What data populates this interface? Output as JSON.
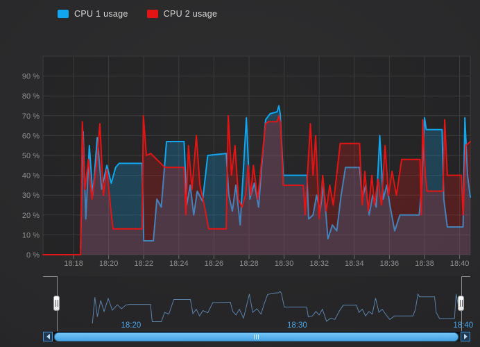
{
  "legend": {
    "items": [
      {
        "label": "CPU 1 usage",
        "color": "#10a6f0"
      },
      {
        "label": "CPU 2 usage",
        "color": "#e51414"
      }
    ]
  },
  "colors": {
    "background": "#28282a",
    "plot_background": "rgba(0,0,0,0.13)",
    "grid": "#3c3c3c",
    "plot_border": "#3c3c3c",
    "axis_label": "#8f8f8f",
    "tick_mark": "#6e6e6e",
    "navigator_line": "#5b82ab",
    "navigator_label": "#4aa5e8",
    "navigator_outline": "#8c8c8c",
    "scrollbar_thumb": "#55aeeb"
  },
  "chart_data": {
    "type": "line",
    "title": "",
    "xlabel": "",
    "ylabel": "",
    "grid": true,
    "legend_position": "top",
    "x_axis": {
      "unit": "time (HH:MM)",
      "range_minutes": [
        16.26,
        40.61
      ],
      "ticks": [
        {
          "t": 18,
          "label": "18:18"
        },
        {
          "t": 20,
          "label": "18:20"
        },
        {
          "t": 22,
          "label": "18:22"
        },
        {
          "t": 24,
          "label": "18:24"
        },
        {
          "t": 26,
          "label": "18:26"
        },
        {
          "t": 28,
          "label": "18:28"
        },
        {
          "t": 30,
          "label": "18:30"
        },
        {
          "t": 32,
          "label": "18:32"
        },
        {
          "t": 34,
          "label": "18:34"
        },
        {
          "t": 36,
          "label": "18:36"
        },
        {
          "t": 38,
          "label": "18:38"
        },
        {
          "t": 40,
          "label": "18:40"
        }
      ]
    },
    "y_axis": {
      "unit": "%",
      "range": [
        0,
        100
      ],
      "ticks": [
        {
          "v": 0,
          "label": "0 %"
        },
        {
          "v": 10,
          "label": "10 %"
        },
        {
          "v": 20,
          "label": "20 %"
        },
        {
          "v": 30,
          "label": "30 %"
        },
        {
          "v": 40,
          "label": "40 %"
        },
        {
          "v": 50,
          "label": "50 %"
        },
        {
          "v": 60,
          "label": "60 %"
        },
        {
          "v": 70,
          "label": "70 %"
        },
        {
          "v": 80,
          "label": "80 %"
        },
        {
          "v": 90,
          "label": "90 %"
        }
      ]
    },
    "series": [
      {
        "name": "CPU 1 usage",
        "color": "#10a6f0",
        "fill_opacity": 0.24,
        "points": [
          [
            18.4,
            3
          ],
          [
            18.55,
            62
          ],
          [
            18.7,
            18
          ],
          [
            18.9,
            55
          ],
          [
            19.1,
            30
          ],
          [
            19.35,
            59
          ],
          [
            19.6,
            33
          ],
          [
            19.9,
            45
          ],
          [
            20.15,
            36
          ],
          [
            20.4,
            44
          ],
          [
            20.6,
            46
          ],
          [
            21.9,
            46
          ],
          [
            22.0,
            7
          ],
          [
            22.55,
            7
          ],
          [
            22.75,
            28
          ],
          [
            23.0,
            24
          ],
          [
            23.3,
            57
          ],
          [
            24.3,
            57
          ],
          [
            24.45,
            25
          ],
          [
            24.65,
            35
          ],
          [
            24.85,
            20
          ],
          [
            25.05,
            32
          ],
          [
            25.35,
            27
          ],
          [
            25.65,
            50
          ],
          [
            26.7,
            51
          ],
          [
            26.85,
            30
          ],
          [
            27.05,
            22
          ],
          [
            27.25,
            35
          ],
          [
            27.5,
            15
          ],
          [
            27.85,
            69
          ],
          [
            28.05,
            28
          ],
          [
            28.3,
            36
          ],
          [
            28.55,
            24
          ],
          [
            28.75,
            48
          ],
          [
            28.95,
            68
          ],
          [
            29.2,
            71
          ],
          [
            29.6,
            72
          ],
          [
            29.7,
            75
          ],
          [
            29.78,
            71
          ],
          [
            29.95,
            40
          ],
          [
            31.3,
            40
          ],
          [
            31.4,
            18
          ],
          [
            31.65,
            20
          ],
          [
            31.85,
            30
          ],
          [
            32.05,
            22
          ],
          [
            32.25,
            35
          ],
          [
            32.5,
            8
          ],
          [
            32.75,
            15
          ],
          [
            33.0,
            12
          ],
          [
            33.25,
            30
          ],
          [
            33.5,
            44
          ],
          [
            34.3,
            44
          ],
          [
            34.45,
            28
          ],
          [
            34.65,
            35
          ],
          [
            34.85,
            20
          ],
          [
            35.05,
            30
          ],
          [
            35.25,
            24
          ],
          [
            35.45,
            60
          ],
          [
            35.65,
            28
          ],
          [
            35.85,
            35
          ],
          [
            36.05,
            24
          ],
          [
            36.3,
            12
          ],
          [
            36.6,
            20
          ],
          [
            37.7,
            20
          ],
          [
            37.85,
            35
          ],
          [
            38.0,
            69
          ],
          [
            38.1,
            63
          ],
          [
            39.0,
            63
          ],
          [
            39.1,
            28
          ],
          [
            39.3,
            14
          ],
          [
            40.2,
            14
          ],
          [
            40.3,
            69
          ],
          [
            40.45,
            40
          ],
          [
            40.61,
            29
          ]
        ]
      },
      {
        "name": "CPU 2 usage",
        "color": "#e51414",
        "fill_opacity": 0.24,
        "points": [
          [
            16.26,
            0
          ],
          [
            18.4,
            0
          ],
          [
            18.5,
            67
          ],
          [
            18.65,
            33
          ],
          [
            18.85,
            48
          ],
          [
            19.05,
            28
          ],
          [
            19.3,
            45
          ],
          [
            19.5,
            66
          ],
          [
            19.7,
            30
          ],
          [
            19.9,
            43
          ],
          [
            20.1,
            25
          ],
          [
            20.25,
            13
          ],
          [
            21.9,
            13
          ],
          [
            21.98,
            70
          ],
          [
            22.15,
            50
          ],
          [
            22.4,
            51
          ],
          [
            23.2,
            44
          ],
          [
            24.3,
            44
          ],
          [
            24.4,
            20
          ],
          [
            24.55,
            55
          ],
          [
            24.75,
            33
          ],
          [
            25.0,
            60
          ],
          [
            25.2,
            35
          ],
          [
            25.45,
            25
          ],
          [
            25.7,
            13
          ],
          [
            26.7,
            13
          ],
          [
            26.82,
            70
          ],
          [
            27.0,
            40
          ],
          [
            27.2,
            55
          ],
          [
            27.4,
            28
          ],
          [
            27.6,
            24
          ],
          [
            27.8,
            30
          ],
          [
            27.95,
            45
          ],
          [
            28.1,
            30
          ],
          [
            28.25,
            45
          ],
          [
            28.5,
            28
          ],
          [
            28.75,
            50
          ],
          [
            28.95,
            66
          ],
          [
            29.1,
            67
          ],
          [
            29.6,
            67
          ],
          [
            29.7,
            70
          ],
          [
            29.8,
            66
          ],
          [
            29.95,
            35
          ],
          [
            30.1,
            35
          ],
          [
            31.1,
            35
          ],
          [
            31.2,
            20
          ],
          [
            31.5,
            66
          ],
          [
            31.65,
            40
          ],
          [
            31.8,
            60
          ],
          [
            32.0,
            18
          ],
          [
            32.2,
            40
          ],
          [
            32.4,
            22
          ],
          [
            32.6,
            35
          ],
          [
            32.8,
            25
          ],
          [
            33.2,
            56
          ],
          [
            34.3,
            56
          ],
          [
            34.45,
            25
          ],
          [
            34.6,
            42
          ],
          [
            34.8,
            22
          ],
          [
            35.0,
            40
          ],
          [
            35.15,
            25
          ],
          [
            35.35,
            38
          ],
          [
            35.55,
            25
          ],
          [
            35.75,
            55
          ],
          [
            35.95,
            30
          ],
          [
            36.15,
            42
          ],
          [
            36.4,
            30
          ],
          [
            36.7,
            48
          ],
          [
            37.75,
            48
          ],
          [
            37.82,
            20
          ],
          [
            37.9,
            68
          ],
          [
            38.05,
            40
          ],
          [
            38.15,
            32
          ],
          [
            39.05,
            32
          ],
          [
            39.15,
            68
          ],
          [
            39.3,
            40
          ],
          [
            40.1,
            40
          ],
          [
            40.2,
            20
          ],
          [
            40.35,
            55
          ],
          [
            40.61,
            57
          ]
        ]
      }
    ],
    "navigator": {
      "shows_series": "CPU 1 usage",
      "labels": [
        {
          "t": 20,
          "label": "18:20"
        },
        {
          "t": 30,
          "label": "18:30"
        },
        {
          "t": 40,
          "label": "18:40"
        }
      ]
    }
  },
  "scrollbar": {
    "grip": "III",
    "full_range_selected": true
  }
}
